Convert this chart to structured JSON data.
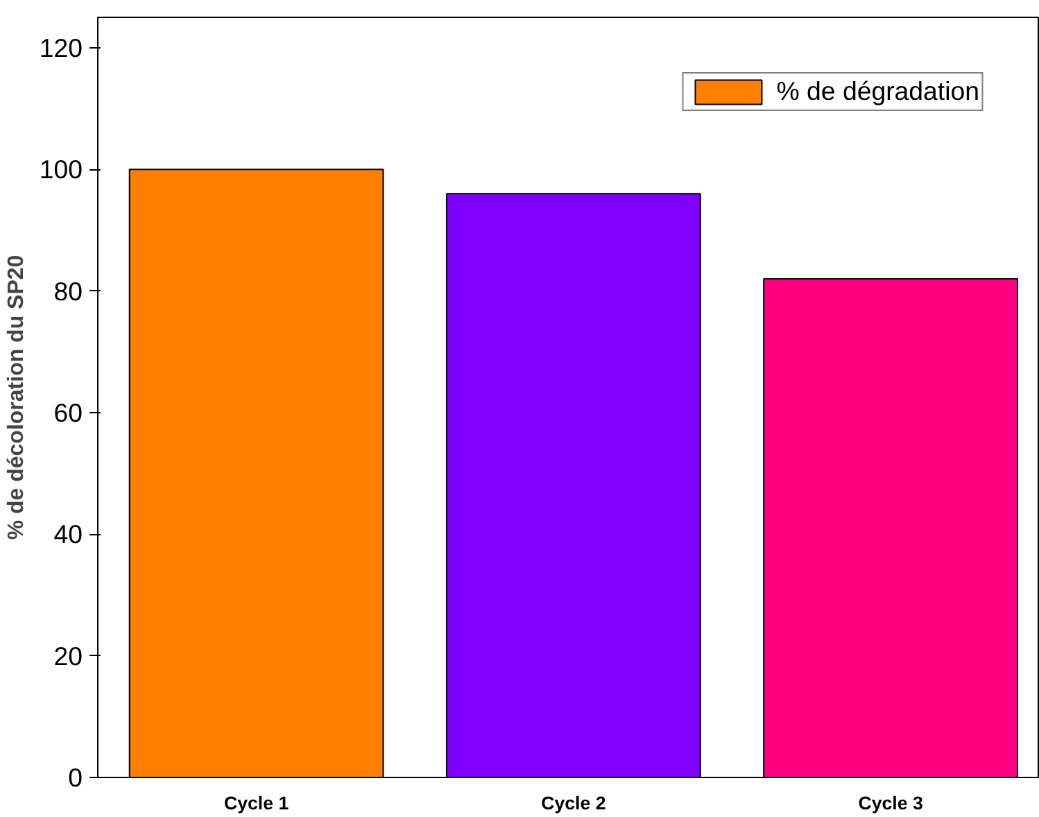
{
  "chart_data": {
    "type": "bar",
    "ylabel": "% de décoloration du SP20",
    "categories": [
      "Cycle 1",
      "Cycle 2",
      "Cycle 3"
    ],
    "series": [
      {
        "name": "% de dégradation",
        "colors": [
          "#ff8000",
          "#8000ff",
          "#ff0080"
        ],
        "values": [
          100,
          96,
          82
        ]
      }
    ],
    "ylim": [
      0,
      125
    ],
    "yticks": [
      0,
      20,
      40,
      60,
      80,
      100,
      120
    ],
    "grid": false,
    "legend": "top right"
  }
}
